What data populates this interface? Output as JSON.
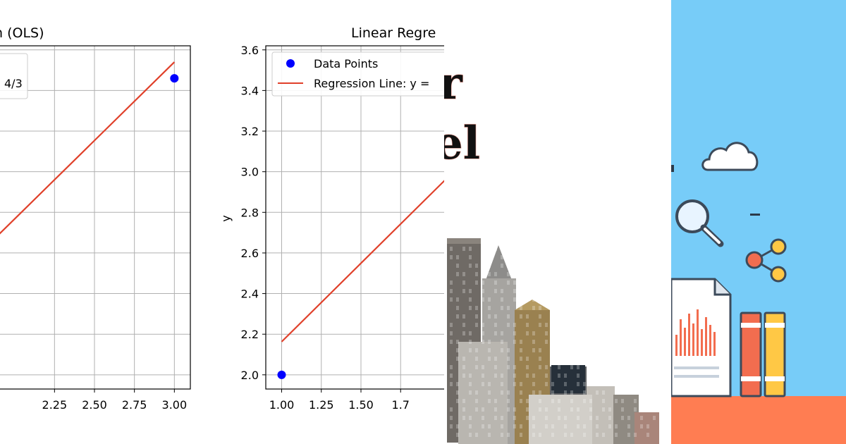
{
  "chart_data": [
    {
      "type": "scatter+line",
      "title_visible": "n (OLS)",
      "xlim": [
        1.9,
        3.1
      ],
      "ylim": [
        1.93,
        3.62
      ],
      "x_ticks": [
        "2.25",
        "2.50",
        "2.75",
        "3.00"
      ],
      "x_tick_values": [
        2.25,
        2.5,
        2.75,
        3.0
      ],
      "y_grid_values": [
        2.0,
        2.2,
        2.4,
        2.6,
        2.8,
        3.0,
        3.2,
        3.4,
        3.6
      ],
      "grid": true,
      "legend_fragment": "4/3",
      "legend_placement": "top-left",
      "series": [
        {
          "kind": "scatter",
          "color": "#0000ff",
          "points": [
            [
              3.0,
              3.46
            ]
          ]
        },
        {
          "kind": "line",
          "color": "#e0402a",
          "points": [
            [
              1.9,
              2.69
            ],
            [
              3.0,
              3.54
            ]
          ]
        }
      ]
    },
    {
      "type": "scatter+line",
      "title_visible": "Linear Regre",
      "ylabel": "y",
      "xlim": [
        0.9,
        2.1
      ],
      "ylim": [
        1.93,
        3.62
      ],
      "x_ticks": [
        "1.00",
        "1.25",
        "1.50",
        "1.7"
      ],
      "x_tick_values": [
        1.0,
        1.25,
        1.5,
        1.75
      ],
      "y_ticks": [
        "2.0",
        "2.2",
        "2.4",
        "2.6",
        "2.8",
        "3.0",
        "3.2",
        "3.4",
        "3.6"
      ],
      "y_tick_values": [
        2.0,
        2.2,
        2.4,
        2.6,
        2.8,
        3.0,
        3.2,
        3.4,
        3.6
      ],
      "grid": true,
      "legend": [
        "Data Points",
        "Regression Line: y ="
      ],
      "legend_placement": "top-left",
      "series": [
        {
          "kind": "scatter",
          "name": "Data Points",
          "color": "#0000ff",
          "points": [
            [
              1.0,
              2.0
            ]
          ]
        },
        {
          "kind": "line",
          "name": "Regression Line: y =",
          "color": "#e0402a",
          "points": [
            [
              1.0,
              2.163
            ],
            [
              2.1,
              3.013
            ]
          ]
        }
      ]
    }
  ],
  "overlay_words": [
    "r",
    "el"
  ],
  "colors": {
    "sky": "#77ccf8",
    "ground": "#ff7d52",
    "book_red": "#f26d4f",
    "book_yellow": "#ffc845"
  }
}
